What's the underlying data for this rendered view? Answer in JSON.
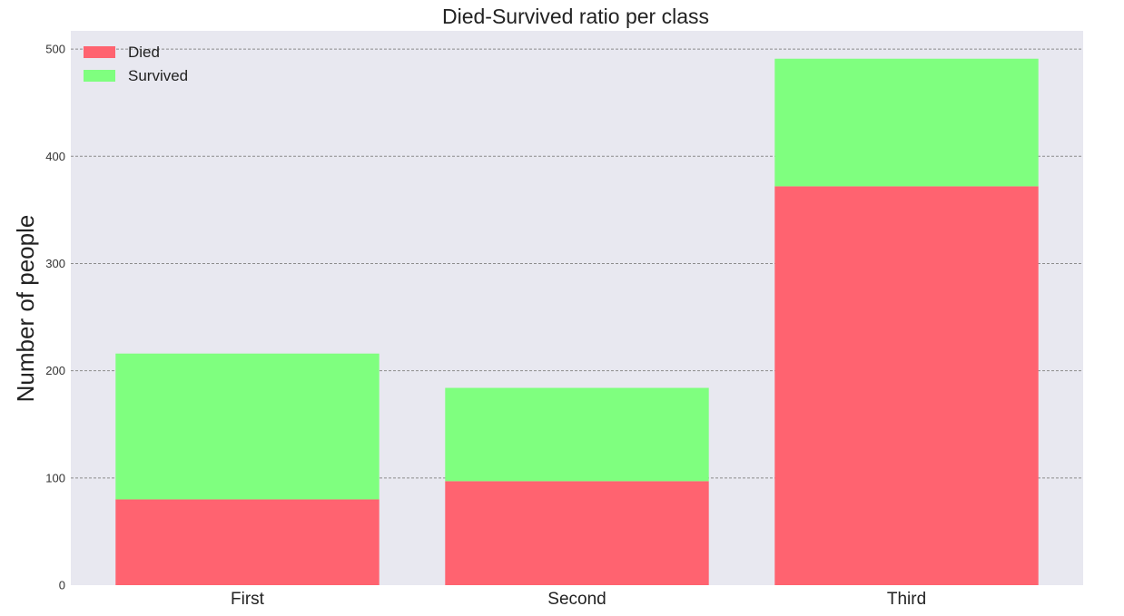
{
  "chart_data": {
    "type": "bar",
    "stacked": true,
    "title": "Died-Survived ratio per class",
    "xlabel": "",
    "ylabel": "Number of people",
    "categories": [
      "First",
      "Second",
      "Third"
    ],
    "series": [
      {
        "name": "Died",
        "values": [
          80,
          97,
          372
        ],
        "color": "#ff6370"
      },
      {
        "name": "Survived",
        "values": [
          136,
          87,
          119
        ],
        "color": "#7fff7f"
      }
    ],
    "ylim": [
      0,
      517
    ],
    "yticks": [
      0,
      100,
      200,
      300,
      400,
      500
    ],
    "grid": "horizontal dashed",
    "legend_position": "top-left",
    "background_color": "#e8e8f0"
  }
}
